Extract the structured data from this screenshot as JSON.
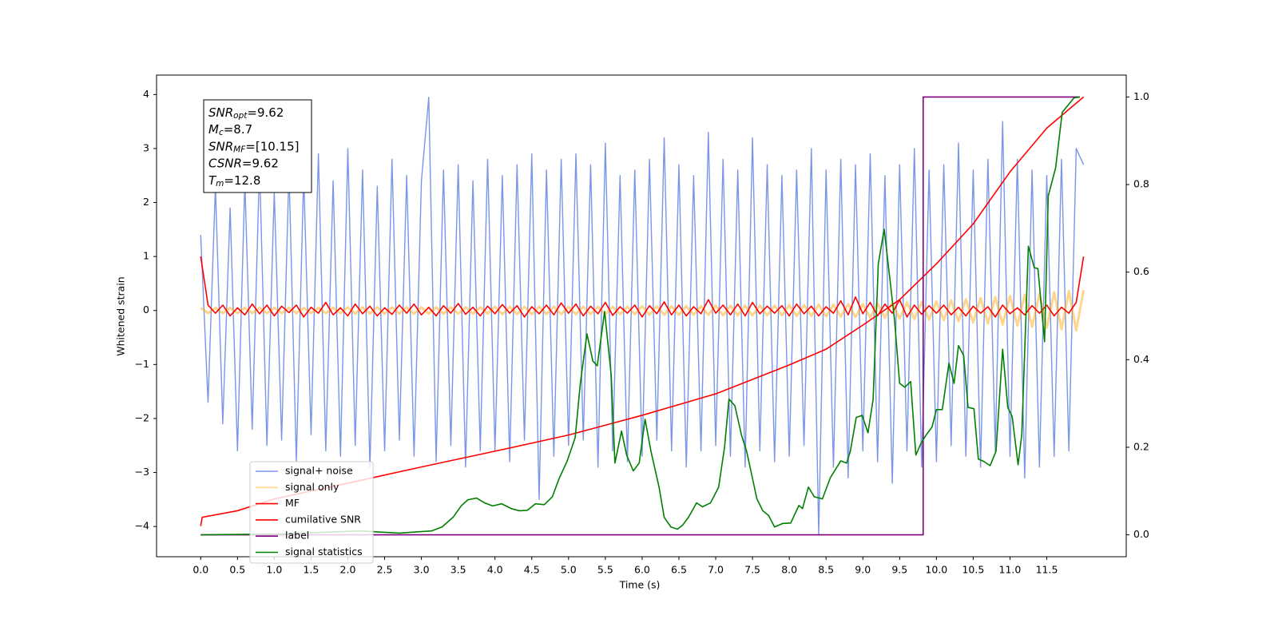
{
  "chart_data": {
    "type": "line",
    "xlabel": "Time (s)",
    "ylabel": "Whitened strain",
    "xlim": [
      -0.6,
      12.58
    ],
    "ylim": [
      -4.56,
      4.36
    ],
    "y2lim": [
      -0.05,
      1.05
    ],
    "xticks": [
      {
        "value": 0,
        "label": "0.0"
      },
      0.5,
      {
        "value": 1,
        "label": "1.0"
      },
      1.5,
      {
        "value": 2,
        "label": "2.0"
      },
      2.5,
      {
        "value": 3,
        "label": "3.0"
      },
      3.5,
      {
        "value": 4,
        "label": "4.0"
      },
      4.5,
      {
        "value": 5,
        "label": "5.0"
      },
      5.5,
      {
        "value": 6,
        "label": "6.0"
      },
      6.5,
      {
        "value": 7,
        "label": "7.0"
      },
      7.5,
      {
        "value": 8,
        "label": "8.0"
      },
      8.5,
      {
        "value": 9,
        "label": "9.0"
      },
      9.5,
      {
        "value": 10,
        "label": "10.0"
      },
      10.5,
      {
        "value": 11,
        "label": "11.0"
      },
      11.5
    ],
    "yticks": [
      {
        "value": -4,
        "label": "−4"
      },
      {
        "value": -3,
        "label": "−3"
      },
      {
        "value": -2,
        "label": "−2"
      },
      {
        "value": -1,
        "label": "−1"
      },
      0,
      1,
      2,
      3,
      4
    ],
    "y2ticks": [
      {
        "value": 0,
        "label": "0.0"
      },
      0.2,
      0.4,
      0.6,
      0.8,
      {
        "value": 1,
        "label": "1.0"
      }
    ],
    "legend": "lower left",
    "annotation": [
      {
        "symbol": "SNR",
        "subscript": "opt",
        "text": "=9.62"
      },
      {
        "symbol": "M",
        "subscript": "c",
        "text": "=8.7"
      },
      {
        "symbol": "SNR",
        "subscript": "MF",
        "text": "=[10.15]"
      },
      {
        "symbol": "CSNR",
        "text": "=9.62"
      },
      {
        "symbol": "T",
        "subscript": "m",
        "text": "=12.8"
      }
    ],
    "x": [
      0,
      0.1,
      0.2,
      0.3,
      0.4,
      0.5,
      0.6,
      0.7,
      0.8,
      0.9,
      1,
      1.1,
      1.2,
      1.3,
      1.4,
      1.5,
      1.6,
      1.7,
      1.8,
      1.9,
      2,
      2.1,
      2.2,
      2.3,
      2.4,
      2.5,
      2.6,
      2.7,
      2.8,
      2.9,
      3,
      3.1,
      3.2,
      3.3,
      3.4,
      3.5,
      3.6,
      3.7,
      3.8,
      3.9,
      4,
      4.1,
      4.2,
      4.3,
      4.4,
      4.5,
      4.6,
      4.7,
      4.8,
      4.9,
      5,
      5.1,
      5.2,
      5.3,
      5.4,
      5.5,
      5.6,
      5.7,
      5.8,
      5.9,
      6,
      6.1,
      6.2,
      6.3,
      6.4,
      6.5,
      6.6,
      6.7,
      6.8,
      6.9,
      7,
      7.1,
      7.2,
      7.3,
      7.4,
      7.5,
      7.6,
      7.7,
      7.8,
      7.9,
      8,
      8.1,
      8.2,
      8.3,
      8.4,
      8.5,
      8.6,
      8.7,
      8.8,
      8.9,
      9,
      9.1,
      9.2,
      9.3,
      9.4,
      9.5,
      9.6,
      9.7,
      9.8,
      9.9,
      10,
      10.1,
      10.2,
      10.3,
      10.4,
      10.5,
      10.6,
      10.7,
      10.8,
      10.9,
      11,
      11.1,
      11.2,
      11.3,
      11.4,
      11.5,
      11.6,
      11.7,
      11.8,
      11.9,
      12
    ],
    "series": [
      {
        "name": "signal+ noise",
        "color": "#7b96e8",
        "values": [
          1.4,
          -1.7,
          2.3,
          -2.1,
          1.9,
          -2.6,
          2.4,
          -2.2,
          2.7,
          -2.5,
          2.2,
          -2.4,
          2.6,
          -2.8,
          2.5,
          -2.3,
          2.9,
          -2.6,
          2.4,
          -2.7,
          3.0,
          -2.5,
          2.6,
          -2.9,
          2.3,
          -2.6,
          2.8,
          -2.4,
          2.5,
          -2.7,
          2.4,
          3.95,
          -2.8,
          2.6,
          -2.5,
          2.7,
          -2.9,
          2.4,
          -2.6,
          2.8,
          -2.6,
          2.5,
          -2.8,
          2.7,
          -2.4,
          2.9,
          -3.5,
          2.6,
          -2.7,
          2.8,
          -2.5,
          2.9,
          -2.4,
          2.7,
          -2.9,
          3.1,
          -2.6,
          2.5,
          -2.8,
          2.6,
          -2.7,
          2.8,
          -2.4,
          3.2,
          -2.6,
          2.7,
          -2.9,
          2.5,
          -2.6,
          3.3,
          -2.5,
          2.8,
          -2.7,
          2.6,
          -2.9,
          3.2,
          -2.6,
          2.7,
          -2.8,
          2.5,
          -2.7,
          2.6,
          -2.5,
          3.0,
          -4.14,
          2.6,
          -2.9,
          2.8,
          -3.1,
          2.7,
          -2.6,
          2.9,
          -2.8,
          2.5,
          -3.2,
          2.7,
          -2.6,
          3.0,
          -2.9,
          2.6,
          -2.8,
          2.7,
          -2.5,
          3.1,
          -2.7,
          2.6,
          -2.9,
          2.8,
          -2.6,
          3.5,
          -2.7,
          2.8,
          -3.1,
          2.6,
          -2.9,
          2.5,
          -2.7,
          2.8,
          -2.6,
          3.0,
          2.7
        ]
      },
      {
        "name": "signal only",
        "color": "#ffa500",
        "values": [
          0.05,
          -0.05,
          0.05,
          -0.05,
          0.05,
          -0.05,
          0.05,
          -0.05,
          0.05,
          -0.05,
          0.05,
          -0.05,
          0.05,
          -0.05,
          0.05,
          -0.05,
          0.05,
          -0.05,
          0.05,
          -0.05,
          0.06,
          -0.06,
          0.06,
          -0.06,
          0.06,
          -0.06,
          0.06,
          -0.06,
          0.06,
          -0.06,
          0.06,
          -0.06,
          0.06,
          -0.06,
          0.06,
          -0.06,
          0.06,
          -0.06,
          0.06,
          -0.06,
          0.07,
          -0.07,
          0.07,
          -0.07,
          0.07,
          -0.07,
          0.07,
          -0.07,
          0.07,
          -0.07,
          0.07,
          -0.07,
          0.07,
          -0.07,
          0.07,
          -0.07,
          0.07,
          -0.07,
          0.07,
          -0.07,
          0.08,
          -0.08,
          0.08,
          -0.08,
          0.08,
          -0.08,
          0.08,
          -0.08,
          0.08,
          -0.08,
          0.09,
          -0.09,
          0.09,
          -0.09,
          0.09,
          -0.09,
          0.09,
          -0.09,
          0.09,
          -0.09,
          0.1,
          -0.1,
          0.1,
          -0.1,
          0.11,
          -0.11,
          0.11,
          -0.11,
          0.12,
          -0.12,
          0.12,
          -0.13,
          0.13,
          -0.14,
          0.14,
          -0.15,
          0.15,
          -0.16,
          0.16,
          -0.17,
          0.17,
          -0.18,
          0.19,
          -0.2,
          0.21,
          -0.22,
          0.23,
          -0.24,
          0.25,
          -0.26,
          0.27,
          -0.28,
          0.29,
          -0.3,
          0.31,
          -0.32,
          0.34,
          -0.35,
          0.36,
          -0.37,
          0.38
        ]
      },
      {
        "name": "MF",
        "color": "#ff0000",
        "values": [
          1.0,
          0.1,
          -0.05,
          0.1,
          -0.1,
          0.05,
          -0.08,
          0.12,
          -0.06,
          0.1,
          -0.1,
          0.08,
          -0.04,
          0.1,
          -0.12,
          0.06,
          -0.05,
          0.15,
          -0.08,
          0.05,
          -0.1,
          0.12,
          -0.06,
          0.08,
          -0.1,
          0.05,
          -0.07,
          0.1,
          -0.05,
          0.12,
          -0.08,
          0.06,
          -0.1,
          0.09,
          -0.05,
          0.13,
          -0.07,
          0.06,
          -0.1,
          0.08,
          -0.06,
          0.11,
          -0.05,
          0.09,
          -0.12,
          0.07,
          -0.06,
          0.1,
          -0.08,
          0.14,
          -0.05,
          0.12,
          -0.1,
          0.08,
          -0.06,
          0.15,
          -0.09,
          0.07,
          -0.05,
          0.1,
          -0.12,
          0.09,
          -0.06,
          0.16,
          -0.08,
          0.1,
          -0.1,
          0.07,
          -0.06,
          0.2,
          -0.05,
          0.1,
          -0.08,
          0.12,
          -0.1,
          0.15,
          -0.06,
          0.08,
          -0.05,
          0.09,
          -0.1,
          0.12,
          -0.06,
          0.08,
          -0.1,
          0.07,
          -0.05,
          0.18,
          -0.08,
          0.25,
          -0.06,
          0.15,
          -0.1,
          0.12,
          -0.05,
          0.2,
          -0.12,
          0.1,
          -0.07,
          0.09,
          -0.05,
          0.1,
          -0.08,
          0.06,
          -0.1,
          0.08,
          -0.05,
          0.07,
          -0.12,
          0.1,
          -0.06,
          0.05,
          -0.08,
          0.09,
          -0.05,
          0.1,
          -0.1,
          0.06,
          -0.05,
          0.15,
          1.0
        ]
      },
      {
        "name": "cumilative SNR",
        "color": "#ff0000",
        "axis": "y2",
        "x": [
          0,
          0.02,
          0.5,
          1,
          2,
          3,
          4,
          5,
          6,
          7,
          8,
          8.5,
          9,
          9.5,
          10,
          10.5,
          11,
          11.5,
          12
        ],
        "values": [
          0.02,
          0.04,
          0.055,
          0.082,
          0.118,
          0.155,
          0.191,
          0.228,
          0.273,
          0.322,
          0.388,
          0.424,
          0.479,
          0.537,
          0.619,
          0.71,
          0.829,
          0.929,
          1.0
        ]
      },
      {
        "name": "label",
        "color": "#800080",
        "axis": "y2",
        "x": [
          0,
          9.82,
          9.82,
          11.95
        ],
        "values": [
          0,
          0,
          1,
          1
        ]
      },
      {
        "name": "signal statistics",
        "color": "#008000",
        "axis": "y2",
        "x": [
          0,
          1.07,
          2.16,
          2.7,
          3.14,
          3.28,
          3.43,
          3.54,
          3.63,
          3.75,
          3.86,
          3.97,
          4.09,
          4.22,
          4.33,
          4.44,
          4.55,
          4.67,
          4.78,
          4.87,
          4.98,
          5.09,
          5.16,
          5.25,
          5.33,
          5.39,
          5.49,
          5.58,
          5.63,
          5.72,
          5.79,
          5.88,
          5.96,
          6.04,
          6.12,
          6.23,
          6.3,
          6.39,
          6.48,
          6.55,
          6.63,
          6.74,
          6.82,
          6.93,
          7.04,
          7.12,
          7.18,
          7.26,
          7.35,
          7.42,
          7.56,
          7.64,
          7.72,
          7.8,
          7.91,
          8.02,
          8.13,
          8.18,
          8.26,
          8.34,
          8.45,
          8.56,
          8.7,
          8.78,
          8.83,
          8.91,
          8.99,
          9.07,
          9.14,
          9.21,
          9.29,
          9.35,
          9.43,
          9.5,
          9.57,
          9.65,
          9.72,
          9.79,
          9.86,
          9.94,
          10,
          10.08,
          10.17,
          10.24,
          10.3,
          10.37,
          10.43,
          10.51,
          10.57,
          10.64,
          10.73,
          10.81,
          10.9,
          10.97,
          11.03,
          11.11,
          11.16,
          11.25,
          11.33,
          11.38,
          11.47,
          11.52,
          11.62,
          11.71,
          11.87,
          11.95
        ],
        "values": [
          0,
          0.002,
          0.009,
          0.004,
          0.009,
          0.018,
          0.04,
          0.066,
          0.08,
          0.084,
          0.073,
          0.066,
          0.071,
          0.06,
          0.055,
          0.056,
          0.071,
          0.069,
          0.087,
          0.128,
          0.168,
          0.222,
          0.346,
          0.459,
          0.397,
          0.386,
          0.51,
          0.364,
          0.164,
          0.237,
          0.182,
          0.146,
          0.164,
          0.264,
          0.191,
          0.109,
          0.04,
          0.018,
          0.013,
          0.022,
          0.04,
          0.073,
          0.064,
          0.073,
          0.109,
          0.2,
          0.31,
          0.295,
          0.228,
          0.191,
          0.082,
          0.055,
          0.044,
          0.018,
          0.026,
          0.027,
          0.067,
          0.06,
          0.109,
          0.087,
          0.082,
          0.131,
          0.169,
          0.164,
          0.191,
          0.268,
          0.273,
          0.233,
          0.31,
          0.619,
          0.698,
          0.61,
          0.492,
          0.346,
          0.337,
          0.35,
          0.182,
          0.209,
          0.228,
          0.246,
          0.286,
          0.286,
          0.392,
          0.346,
          0.432,
          0.41,
          0.291,
          0.288,
          0.173,
          0.168,
          0.158,
          0.191,
          0.424,
          0.291,
          0.27,
          0.16,
          0.228,
          0.659,
          0.61,
          0.608,
          0.441,
          0.774,
          0.838,
          0.965,
          0.998,
          1.0
        ]
      }
    ]
  }
}
